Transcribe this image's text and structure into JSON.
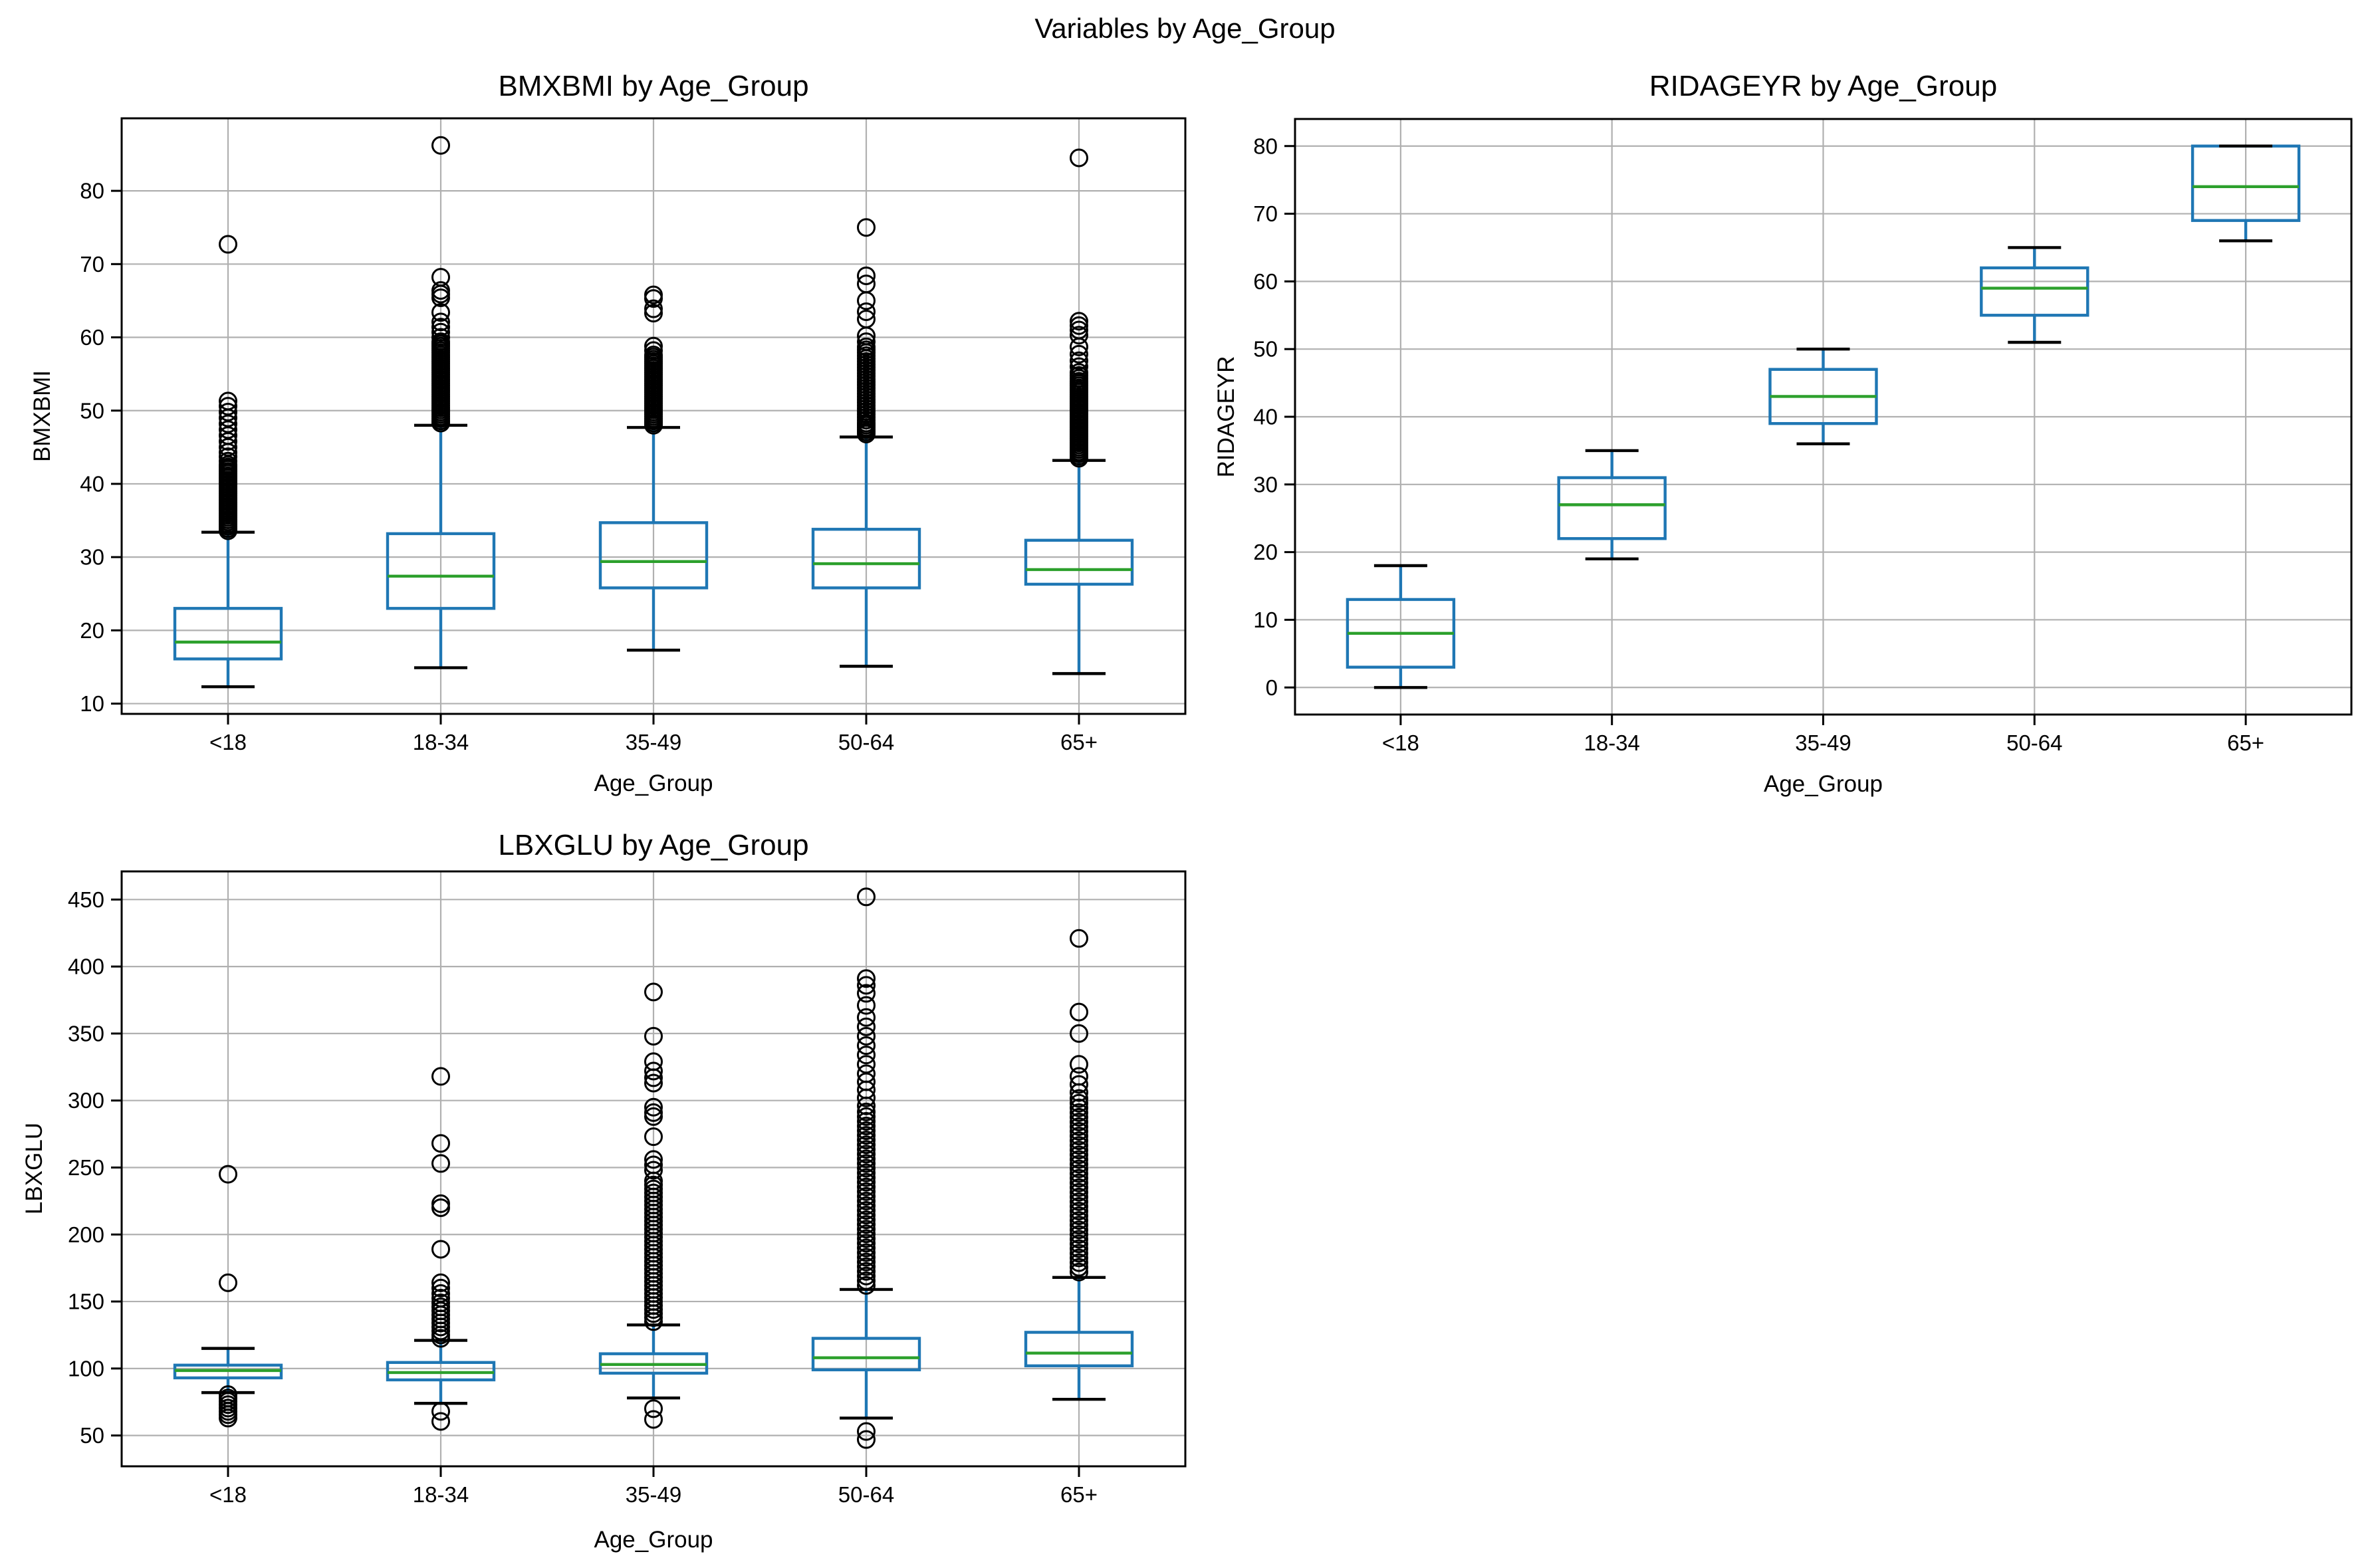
{
  "suptitle": "Variables by Age_Group",
  "colors": {
    "box": "#1f77b4",
    "whisker": "#1f77b4",
    "median": "#2ca02c",
    "cap": "#000000",
    "outlier": "#000000",
    "grid": "#b0b0b0",
    "spine": "#000000",
    "text": "#000000",
    "background": "#ffffff"
  },
  "chart_data": [
    {
      "type": "boxplot",
      "title": "BMXBMI by Age_Group",
      "xlabel": "Age_Group",
      "ylabel": "BMXBMI",
      "grid": true,
      "legend": "none",
      "categories": [
        "<18",
        "18-34",
        "35-49",
        "50-64",
        "65+"
      ],
      "yticks": [
        10,
        20,
        30,
        40,
        50,
        60,
        70,
        80
      ],
      "ylim": [
        8.6,
        89.9
      ],
      "groups": [
        {
          "label": "<18",
          "whislo": 12.3,
          "q1": 16.1,
          "med": 18.4,
          "q3": 23.0,
          "whishi": 33.4,
          "outliers": [
            33.6,
            33.9,
            34.2,
            34.5,
            34.8,
            35.1,
            35.4,
            35.7,
            36,
            36.3,
            36.6,
            36.9,
            37.2,
            37.5,
            37.8,
            38.1,
            38.4,
            38.7,
            39,
            39.3,
            39.6,
            39.9,
            40.2,
            40.5,
            40.8,
            41.1,
            41.4,
            41.7,
            42,
            42.3,
            42.6,
            43.1,
            43.7,
            44.3,
            45,
            45.8,
            46.6,
            47.4,
            48.2,
            49,
            49.8,
            50.6,
            51.3,
            72.7
          ]
        },
        {
          "label": "18-34",
          "whislo": 14.9,
          "q1": 23.0,
          "med": 27.4,
          "q3": 33.2,
          "whishi": 48.0,
          "outliers": [
            48.3,
            48.6,
            48.9,
            49.2,
            49.5,
            49.8,
            50.1,
            50.4,
            50.7,
            51,
            51.3,
            51.6,
            51.9,
            52.2,
            52.5,
            52.8,
            53.1,
            53.4,
            53.7,
            54,
            54.3,
            54.6,
            54.9,
            55.2,
            55.5,
            55.8,
            56.1,
            56.4,
            56.7,
            57,
            57.3,
            57.6,
            57.9,
            58.2,
            58.5,
            58.8,
            59.1,
            59.4,
            60,
            60.7,
            61.4,
            62.1,
            63.4,
            65.4,
            65.9,
            66.4,
            68.2,
            86.2
          ]
        },
        {
          "label": "35-49",
          "whislo": 17.3,
          "q1": 25.8,
          "med": 29.4,
          "q3": 34.7,
          "whishi": 47.7,
          "outliers": [
            48,
            48.3,
            48.6,
            48.9,
            49.2,
            49.5,
            49.8,
            50.1,
            50.4,
            50.7,
            51,
            51.3,
            51.6,
            51.9,
            52.2,
            52.5,
            52.8,
            53.1,
            53.4,
            53.7,
            54,
            54.3,
            54.6,
            54.9,
            55.2,
            55.5,
            55.8,
            56.1,
            56.4,
            56.7,
            57,
            57.3,
            57.6,
            58.2,
            58.8,
            63.3,
            63.9,
            65.3,
            65.8
          ]
        },
        {
          "label": "50-64",
          "whislo": 15.1,
          "q1": 25.8,
          "med": 29.1,
          "q3": 33.8,
          "whishi": 46.4,
          "outliers": [
            46.8,
            47.1,
            47.4,
            47.7,
            48,
            48.3,
            48.7,
            49.1,
            49.5,
            49.9,
            50.3,
            50.7,
            51.1,
            51.5,
            51.9,
            52.3,
            52.7,
            53.1,
            53.5,
            53.9,
            54.3,
            54.7,
            55.1,
            55.5,
            55.9,
            56.3,
            56.7,
            57.1,
            57.5,
            57.9,
            58.3,
            58.7,
            59.4,
            60.2,
            62.5,
            63.5,
            65,
            67.3,
            68.4,
            75
          ]
        },
        {
          "label": "65+",
          "whislo": 14.1,
          "q1": 26.3,
          "med": 28.3,
          "q3": 32.3,
          "whishi": 43.2,
          "outliers": [
            43.5,
            43.8,
            44.1,
            44.4,
            44.7,
            45,
            45.3,
            45.6,
            45.9,
            46.2,
            46.5,
            46.8,
            47.1,
            47.4,
            47.7,
            48,
            48.3,
            48.6,
            48.9,
            49.2,
            49.5,
            49.8,
            50.1,
            50.4,
            50.7,
            51,
            51.3,
            51.6,
            51.9,
            52.2,
            52.5,
            52.8,
            53.1,
            53.4,
            53.7,
            54,
            54.4,
            54.8,
            55.2,
            56,
            56.8,
            57.7,
            58.7,
            60.3,
            61,
            61.6,
            62.2,
            84.5
          ]
        }
      ]
    },
    {
      "type": "boxplot",
      "title": "RIDAGEYR by Age_Group",
      "xlabel": "Age_Group",
      "ylabel": "RIDAGEYR",
      "grid": true,
      "legend": "none",
      "categories": [
        "<18",
        "18-34",
        "35-49",
        "50-64",
        "65+"
      ],
      "yticks": [
        0,
        10,
        20,
        30,
        40,
        50,
        60,
        70,
        80
      ],
      "ylim": [
        -4,
        84
      ],
      "groups": [
        {
          "label": "<18",
          "whislo": 0,
          "q1": 3,
          "med": 8,
          "q3": 13,
          "whishi": 18,
          "outliers": []
        },
        {
          "label": "18-34",
          "whislo": 19,
          "q1": 22,
          "med": 27,
          "q3": 31,
          "whishi": 35,
          "outliers": []
        },
        {
          "label": "35-49",
          "whislo": 36,
          "q1": 39,
          "med": 43,
          "q3": 47,
          "whishi": 50,
          "outliers": []
        },
        {
          "label": "50-64",
          "whislo": 51,
          "q1": 55,
          "med": 59,
          "q3": 62,
          "whishi": 65,
          "outliers": []
        },
        {
          "label": "65+",
          "whislo": 66,
          "q1": 69,
          "med": 74,
          "q3": 80,
          "whishi": 80,
          "outliers": []
        }
      ]
    },
    {
      "type": "boxplot",
      "title": "LBXGLU by Age_Group",
      "xlabel": "Age_Group",
      "ylabel": "LBXGLU",
      "grid": true,
      "legend": "none",
      "categories": [
        "<18",
        "18-34",
        "35-49",
        "50-64",
        "65+"
      ],
      "yticks": [
        50,
        100,
        150,
        200,
        250,
        300,
        350,
        400,
        450
      ],
      "ylim": [
        27,
        471
      ],
      "groups": [
        {
          "label": "<18",
          "whislo": 82,
          "q1": 93,
          "med": 98.5,
          "q3": 102.5,
          "whishi": 115,
          "outliers": [
            63,
            65.5,
            68,
            70.5,
            73,
            75.5,
            78,
            80.5,
            164,
            245
          ]
        },
        {
          "label": "18-34",
          "whislo": 74,
          "q1": 91.5,
          "med": 97,
          "q3": 104.5,
          "whishi": 121,
          "outliers": [
            60.5,
            68,
            122.5,
            125,
            128,
            131,
            134,
            137,
            140,
            143,
            146,
            149,
            152.5,
            156,
            160,
            164,
            189,
            220,
            223,
            253,
            268,
            318
          ]
        },
        {
          "label": "35-49",
          "whislo": 78,
          "q1": 96.5,
          "med": 103,
          "q3": 111,
          "whishi": 132.5,
          "outliers": [
            62,
            70,
            135,
            138,
            141,
            144,
            147,
            150,
            153,
            156,
            159,
            162,
            165,
            168,
            171,
            174,
            177,
            180,
            183,
            186,
            189,
            192,
            195,
            198,
            201,
            204,
            207,
            210,
            213,
            216,
            219,
            222,
            225,
            228,
            231,
            234,
            237,
            240,
            248,
            252,
            256,
            273,
            288,
            291,
            295,
            313,
            317,
            322,
            329,
            348,
            381
          ]
        },
        {
          "label": "50-64",
          "whislo": 63,
          "q1": 99,
          "med": 108,
          "q3": 122.5,
          "whishi": 159,
          "outliers": [
            47,
            53,
            162,
            165.5,
            169,
            172.5,
            176,
            179.5,
            183,
            186.5,
            190,
            193.5,
            197,
            200.5,
            204,
            207.5,
            211,
            214.5,
            218,
            221.5,
            225,
            228.5,
            232,
            235.5,
            239,
            242.5,
            246,
            249.5,
            253,
            256.5,
            260,
            263.5,
            267,
            270.5,
            274,
            277.5,
            281,
            284.5,
            288,
            291.5,
            296,
            302,
            308,
            314,
            320,
            327,
            334,
            341,
            348,
            355,
            362,
            371,
            380,
            386,
            391,
            452
          ]
        },
        {
          "label": "65+",
          "whislo": 77,
          "q1": 102,
          "med": 111.5,
          "q3": 127,
          "whishi": 168,
          "outliers": [
            172,
            175.5,
            179,
            182.5,
            186,
            189.5,
            193,
            196.5,
            200,
            203.5,
            207,
            210.5,
            214,
            217.5,
            221,
            224.5,
            228,
            231.5,
            235,
            238.5,
            242,
            245.5,
            249,
            252.5,
            256,
            259.5,
            263,
            266.5,
            270,
            273.5,
            277,
            280.5,
            284,
            287.5,
            291,
            294.5,
            298,
            301.5,
            306,
            312,
            318,
            327,
            350,
            366,
            421
          ]
        }
      ]
    }
  ]
}
